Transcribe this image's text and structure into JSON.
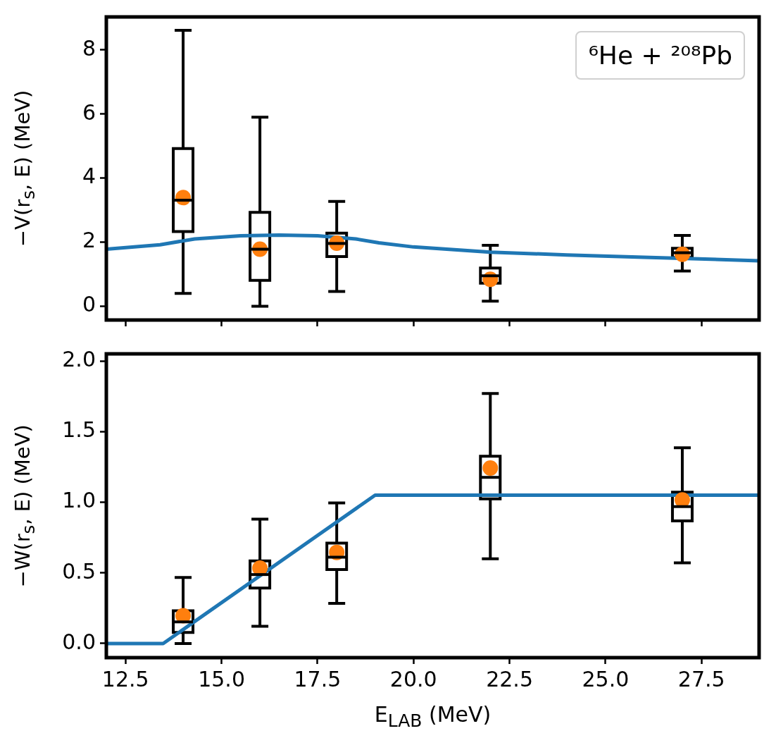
{
  "chart_data": [
    {
      "type": "box",
      "ylabel": "−V(r$_{s}$, E) (MeV)",
      "annotations": [
        "⁶He + ²⁰⁸Pb"
      ],
      "x": [
        14,
        16,
        18,
        22,
        27
      ],
      "xlim": [
        12,
        29
      ],
      "ylim": [
        -0.43,
        9.03
      ],
      "xticks": [
        12.5,
        15,
        17.5,
        20,
        22.5,
        25,
        27.5
      ],
      "yticks": [
        0,
        2,
        4,
        6,
        8
      ],
      "tick_labels": "y",
      "grid": false,
      "legend": false,
      "series": [
        {
          "type": "line",
          "color": "#1f77b4",
          "x": [
            12,
            13.4,
            14.3,
            15.5,
            16.5,
            17.5,
            18.5,
            19.1,
            20,
            22,
            24,
            26,
            29
          ],
          "values": [
            1.78,
            1.92,
            2.1,
            2.2,
            2.22,
            2.2,
            2.1,
            1.98,
            1.85,
            1.69,
            1.6,
            1.53,
            1.42
          ]
        },
        {
          "color": "#000000",
          "boxes": [
            {
              "low": 0.4,
              "q1": 2.33,
              "median": 3.31,
              "q3": 4.92,
              "high": 8.61
            },
            {
              "low": 0,
              "q1": 0.81,
              "median": 1.78,
              "q3": 2.93,
              "high": 5.9
            },
            {
              "low": 0.46,
              "q1": 1.55,
              "median": 1.96,
              "q3": 2.28,
              "high": 3.27
            },
            {
              "low": 0.16,
              "q1": 0.72,
              "median": 0.95,
              "q3": 1.19,
              "high": 1.9
            },
            {
              "low": 1.1,
              "q1": 1.52,
              "median": 1.67,
              "q3": 1.81,
              "high": 2.21
            }
          ]
        },
        {
          "type": "scatter",
          "color": "#ff7f0e",
          "marker": "circle",
          "x": [
            14,
            16,
            18,
            22,
            27
          ],
          "values": [
            3.39,
            1.78,
            1.97,
            0.84,
            1.62
          ]
        }
      ]
    },
    {
      "type": "box",
      "xlabel": "E$_{LAB}$ (MeV)",
      "ylabel": "−W(r$_{s}$, E) (MeV)",
      "x": [
        14,
        16,
        18,
        22,
        27
      ],
      "xlim": [
        12,
        29
      ],
      "ylim": [
        -0.1,
        2.05
      ],
      "xticks": [
        12.5,
        {
          "value": 15,
          "label": "15.0"
        },
        17.5,
        {
          "value": 20,
          "label": "20.0"
        },
        22.5,
        {
          "value": 25,
          "label": "25.0"
        },
        27.5
      ],
      "yticks": [
        {
          "value": 0,
          "label": "0.0"
        },
        0.5,
        {
          "value": 1,
          "label": "1.0"
        },
        1.5,
        {
          "value": 2,
          "label": "2.0"
        }
      ],
      "grid": false,
      "legend": false,
      "series": [
        {
          "type": "line",
          "color": "#1f77b4",
          "x": [
            12,
            13.48,
            19,
            29
          ],
          "values": [
            0,
            0,
            1.05,
            1.05
          ]
        },
        {
          "color": "#000000",
          "boxes": [
            {
              "low": 0,
              "q1": 0.078,
              "median": 0.153,
              "q3": 0.232,
              "high": 0.467
            },
            {
              "low": 0.122,
              "q1": 0.392,
              "median": 0.488,
              "q3": 0.585,
              "high": 0.88
            },
            {
              "low": 0.284,
              "q1": 0.523,
              "median": 0.611,
              "q3": 0.711,
              "high": 0.995
            },
            {
              "low": 0.6,
              "q1": 1.024,
              "median": 1.176,
              "q3": 1.326,
              "high": 1.77
            },
            {
              "low": 0.571,
              "q1": 0.868,
              "median": 0.969,
              "q3": 1.071,
              "high": 1.385
            }
          ]
        },
        {
          "type": "scatter",
          "color": "#ff7f0e",
          "marker": "circle",
          "x": [
            14,
            16,
            18,
            22,
            27
          ],
          "values": [
            0.197,
            0.533,
            0.645,
            1.242,
            1.016
          ]
        }
      ]
    }
  ]
}
